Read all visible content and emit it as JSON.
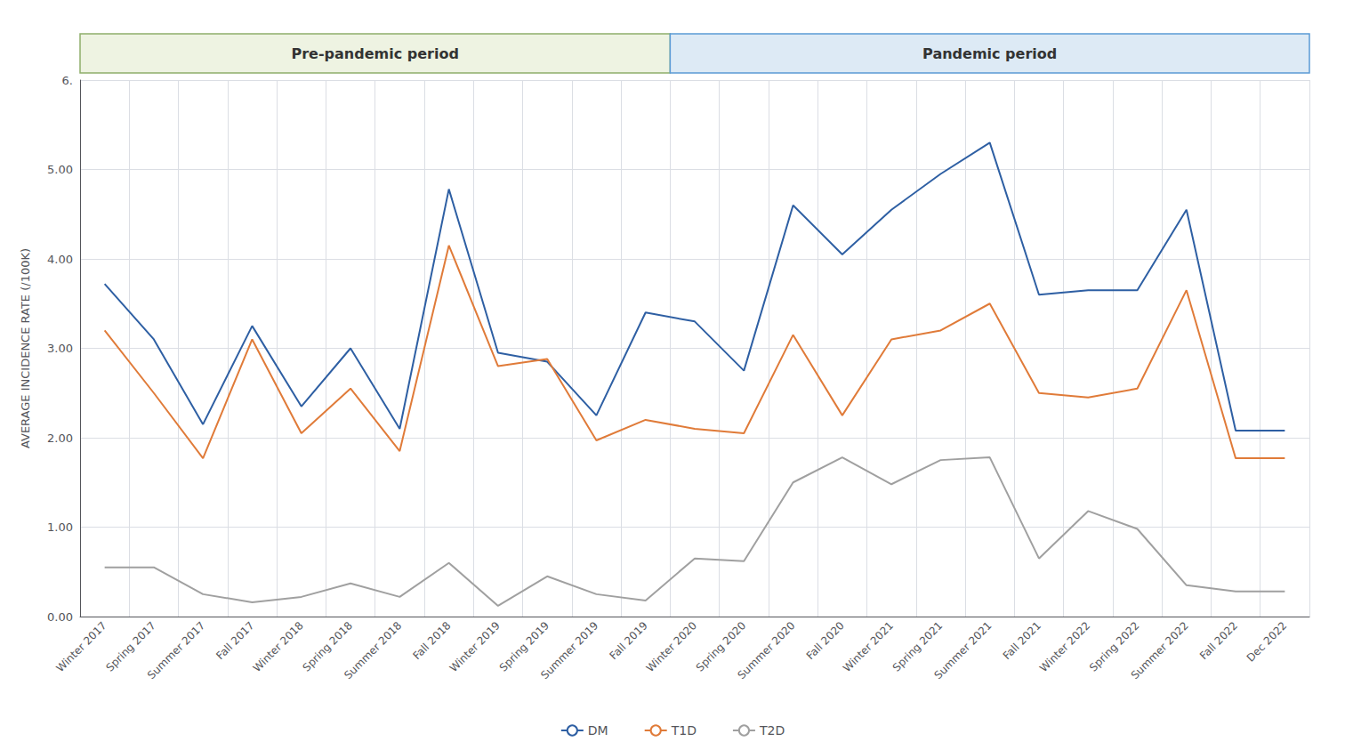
{
  "chart_data": {
    "type": "line",
    "ylabel": "AVERAGE INCIDENCE RATE (/100K)",
    "categories": [
      "Winter 2017",
      "Spring 2017",
      "Summer 2017",
      "Fall 2017",
      "Winter 2018",
      "Spring 2018",
      "Summer 2018",
      "Fall 2018",
      "Winter 2019",
      "Spring 2019",
      "Summer 2019",
      "Fall 2019",
      "Winter 2020",
      "Spring 2020",
      "Summer 2020",
      "Fall 2020",
      "Winter 2021",
      "Spring 2021",
      "Summer 2021",
      "Fall 2021",
      "Winter 2022",
      "Spring 2022",
      "Summer 2022",
      "Fall 2022",
      "Dec 2022"
    ],
    "series": [
      {
        "name": "DM",
        "color": "#2E5FA3",
        "values": [
          3.72,
          3.1,
          2.15,
          3.25,
          2.35,
          3.0,
          2.1,
          4.78,
          2.95,
          2.85,
          2.25,
          3.4,
          3.3,
          2.75,
          4.6,
          4.05,
          4.55,
          4.95,
          5.3,
          3.6,
          3.65,
          3.65,
          4.55,
          2.08,
          2.08
        ]
      },
      {
        "name": "T1D",
        "color": "#E07B39",
        "values": [
          3.2,
          2.5,
          1.77,
          3.1,
          2.05,
          2.55,
          1.85,
          4.15,
          2.8,
          2.88,
          1.97,
          2.2,
          2.1,
          2.05,
          3.15,
          2.25,
          3.1,
          3.2,
          3.5,
          2.5,
          2.45,
          2.55,
          3.65,
          1.77,
          1.77
        ]
      },
      {
        "name": "T2D",
        "color": "#A0A0A0",
        "values": [
          0.55,
          0.55,
          0.25,
          0.16,
          0.22,
          0.37,
          0.22,
          0.6,
          0.12,
          0.45,
          0.25,
          0.18,
          0.65,
          0.62,
          1.5,
          1.78,
          1.48,
          1.75,
          1.78,
          0.65,
          1.18,
          0.98,
          0.35,
          0.28,
          0.28
        ]
      }
    ],
    "ylim": [
      0,
      6.0
    ],
    "yticks": [
      {
        "value": 0.0,
        "label": "0.00"
      },
      {
        "value": 1.0,
        "label": "1.00"
      },
      {
        "value": 2.0,
        "label": "2.00"
      },
      {
        "value": 3.0,
        "label": "3.00"
      },
      {
        "value": 4.0,
        "label": "4.00"
      },
      {
        "value": 5.0,
        "label": "5.00"
      },
      {
        "value": 6.0,
        "label": "6."
      }
    ],
    "annotations": [
      {
        "text": "Pre-pandemic period",
        "from": "Winter 2017",
        "to": "Fall 2019"
      },
      {
        "text": "Pandemic period",
        "from": "Winter 2020",
        "to": "Dec 2022"
      }
    ],
    "grid": true,
    "legend": "bottom"
  }
}
